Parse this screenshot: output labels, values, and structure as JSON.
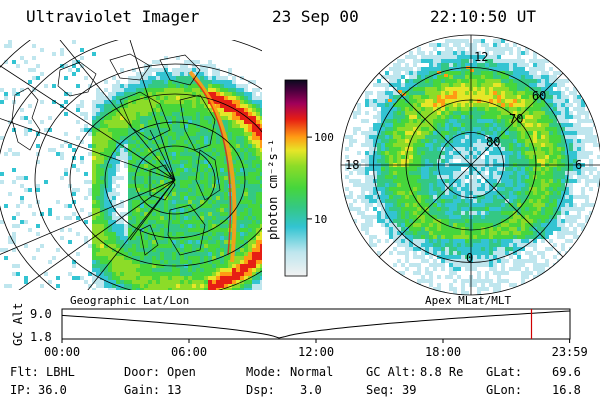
{
  "header": {
    "title": "Ultraviolet Imager",
    "date": "23 Sep 00",
    "time": "22:10:50 UT"
  },
  "colorbar": {
    "unit_label": "photon cm⁻²s⁻¹",
    "ticks": [
      "100",
      "10"
    ],
    "tick_values": [
      100,
      10
    ],
    "range": [
      2,
      500
    ],
    "scale": "log"
  },
  "panels": {
    "left_label": "Geographic Lat/Lon",
    "right_label": "Apex MLat/MLT"
  },
  "polar": {
    "mlt_labels": [
      "12",
      "18",
      "6",
      "0"
    ],
    "lat_labels": [
      "60",
      "70",
      "80"
    ],
    "lat_values": [
      60,
      70,
      80
    ]
  },
  "altitude_plot": {
    "ylabel": "GC Alt",
    "yticks": [
      "9.0",
      "1.8"
    ],
    "ytick_values": [
      9.0,
      1.8
    ],
    "xticks": [
      "00:00",
      "06:00",
      "12:00",
      "18:00",
      "23:59"
    ],
    "xtick_hours": [
      0,
      6,
      12,
      18,
      23.98
    ],
    "current_hour": 22.18,
    "marker_color": "#d00000"
  },
  "info": {
    "flt_label": "Flt:",
    "flt_value": "LBHL",
    "ip_label": "IP:",
    "ip_value": "36.0",
    "door_label": "Door:",
    "door_value": "Open",
    "gain_label": "Gain:",
    "gain_value": "13",
    "mode_label": "Mode:",
    "mode_value": "Normal",
    "dsp_label": "Dsp:",
    "dsp_value": "3.0",
    "gcalt_label": "GC Alt:",
    "gcalt_value": "8.8 Re",
    "seq_label": "Seq:",
    "seq_value": "39",
    "glat_label": "GLat:",
    "glat_value": "69.6",
    "glon_label": "GLon:",
    "glon_value": "16.8"
  }
}
